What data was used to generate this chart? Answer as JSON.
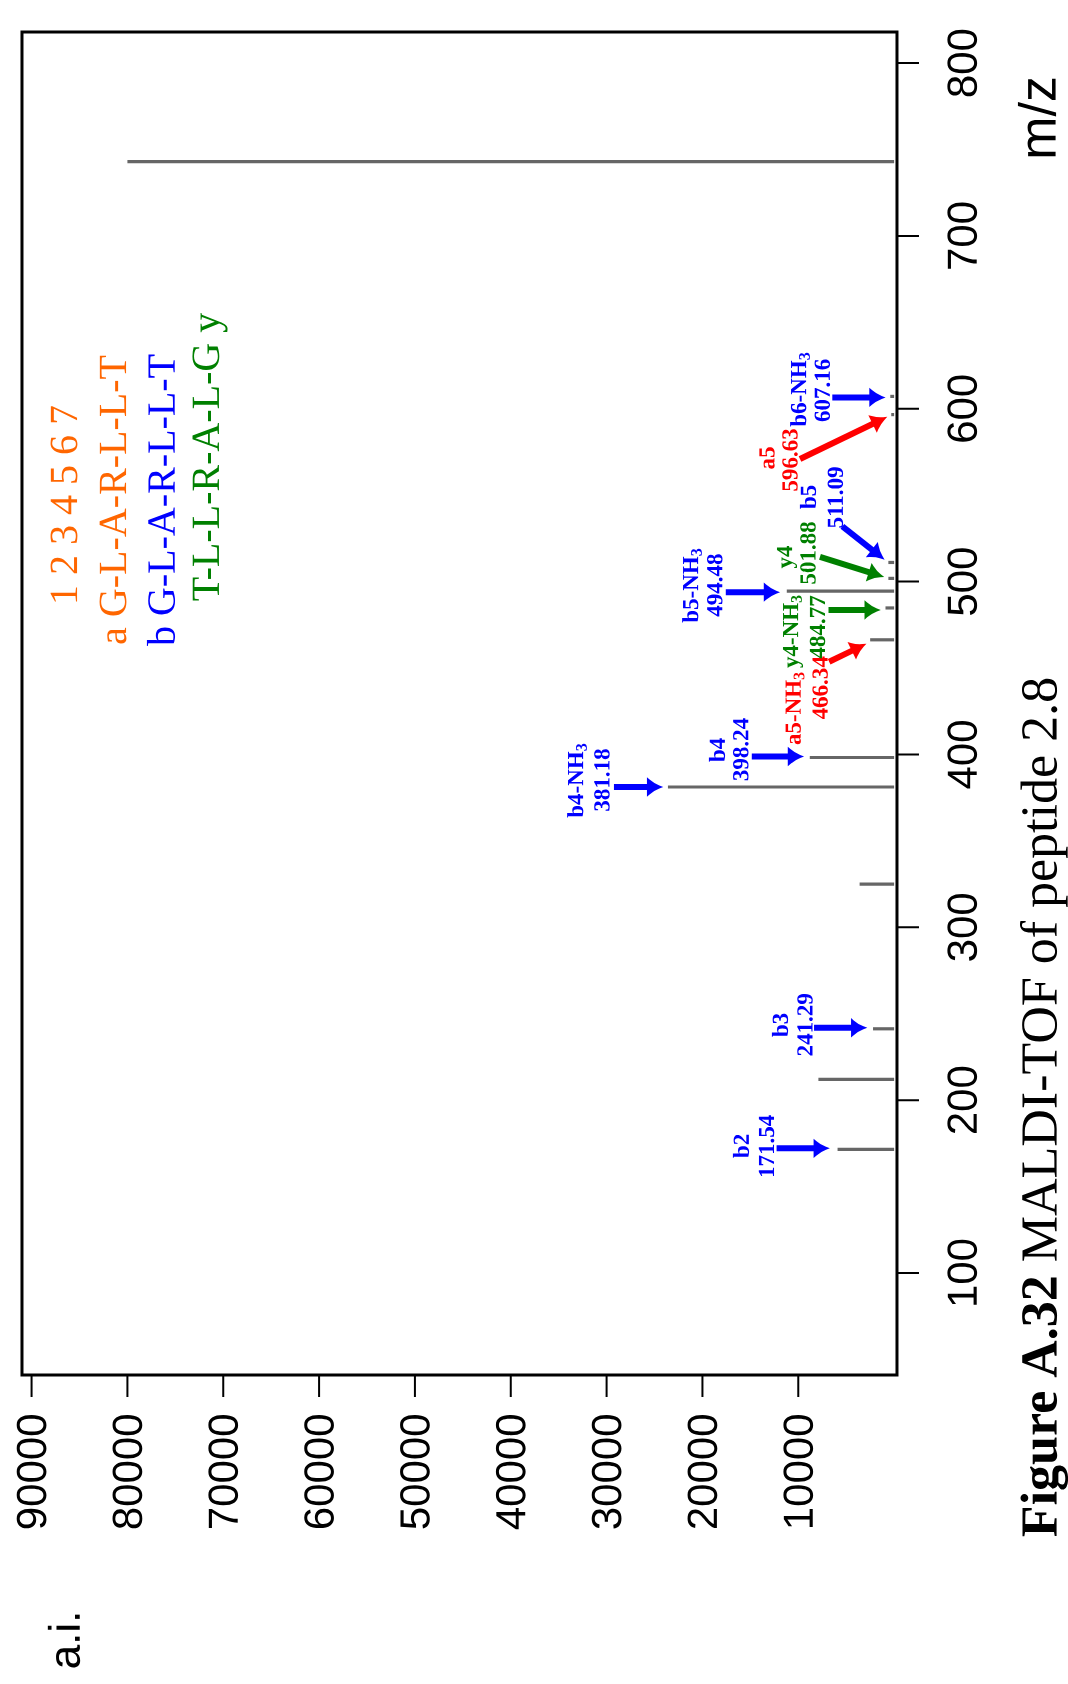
{
  "chart_data": {
    "type": "bar",
    "orientation": "horizontal",
    "ylabel": "m/z",
    "color": "#666666",
    "x": [
      171.54,
      212,
      241.29,
      325,
      381.18,
      398.24,
      466.34,
      484.77,
      494.48,
      501.88,
      511.09,
      596.63,
      607.16,
      743
    ],
    "values": [
      5900,
      7900,
      2200,
      3600,
      23600,
      8800,
      2500,
      900,
      11200,
      600,
      600,
      300,
      400,
      80000
    ],
    "ylim": [
      41,
      818
    ],
    "yticks": [
      100,
      200,
      300,
      400,
      500,
      600,
      700,
      800
    ],
    "xlim": [
      91000,
      -300
    ],
    "xticks": [
      10000,
      20000,
      30000,
      40000,
      50000,
      60000,
      70000,
      80000,
      90000
    ],
    "annotations": [
      "1 2 3 4 5 6 7",
      "a G-L-A-R-L-L-T",
      "b G-L-A-R-L-L-T",
      "T-L-L-R-A-L-G y",
      "**Figure A.32** MALDI-TOF of peptide 2.8",
      "b2",
      {
        "text": "171.54",
        "x": 5900,
        "y": 171.54
      },
      "b3",
      {
        "text": "241.29",
        "x": 2200,
        "y": 241.29
      },
      "b4-NH$_{3}$",
      {
        "text": "381.18",
        "x": 23600,
        "y": 381.18
      },
      "b4",
      {
        "text": "398.24",
        "x": 8800,
        "y": 398.24
      },
      "a5-NH$_{3}$",
      {
        "text": "466.34",
        "x": 2500,
        "y": 466.34
      },
      "y4-NH$_{3}$",
      {
        "text": "484.77",
        "x": 900,
        "y": 484.77
      },
      "b5-NH$_{3}$",
      {
        "text": "494.48",
        "x": 11200,
        "y": 494.48
      },
      "y4",
      "501.88",
      "b5",
      {
        "text": "511.09",
        "x": 600,
        "y": 511.09
      },
      "a5",
      "596.63",
      "b6-NH$_{3}$",
      {
        "text": "607.16",
        "x": 400,
        "y": 607.16
      },
      "a.i."
    ]
  }
}
